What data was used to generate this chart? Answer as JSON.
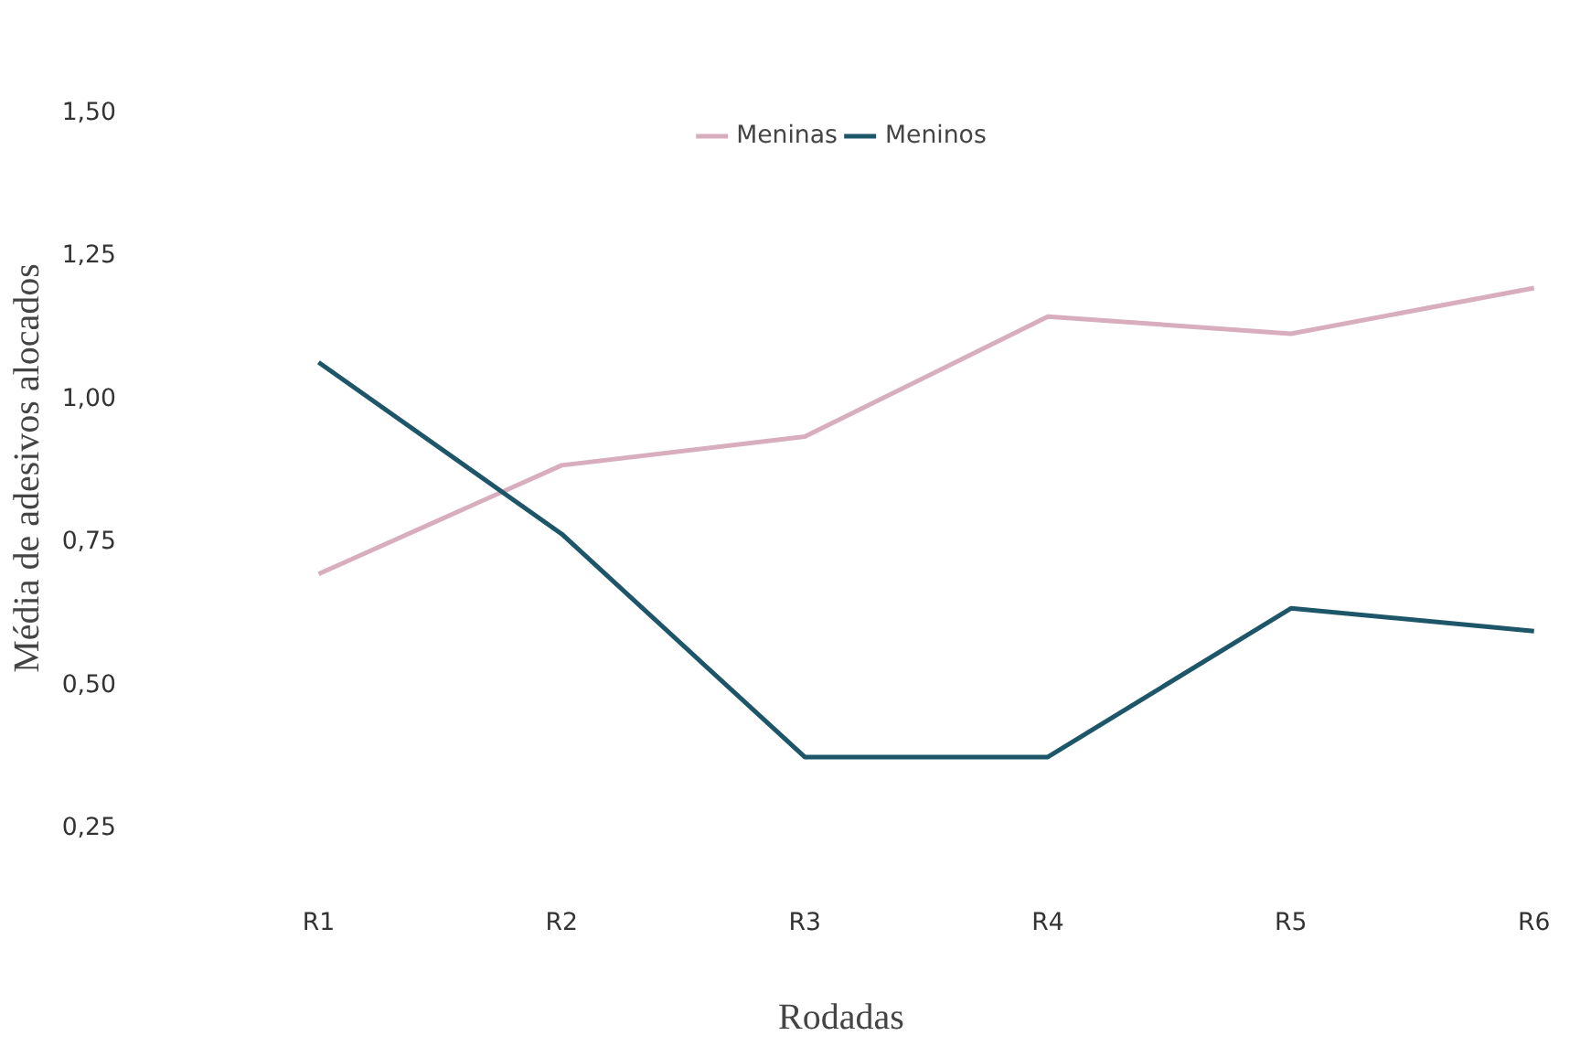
{
  "chart_data": {
    "type": "line",
    "xlabel": "Rodadas",
    "ylabel": "Média de adesivos alocados",
    "categories": [
      "R1",
      "R2",
      "R3",
      "R4",
      "R5",
      "R6"
    ],
    "series": [
      {
        "name": "Meninas",
        "color": "#d8adbd",
        "values": [
          0.69,
          0.88,
          0.93,
          1.14,
          1.11,
          1.19
        ]
      },
      {
        "name": "Meninos",
        "color": "#1d5569",
        "values": [
          1.06,
          0.76,
          0.37,
          0.37,
          0.63,
          0.59
        ]
      }
    ],
    "ylim": [
      0.25,
      1.5
    ],
    "yticks": [
      {
        "value": 0.25,
        "label": "0,25"
      },
      {
        "value": 0.5,
        "label": "0,50"
      },
      {
        "value": 0.75,
        "label": "0,75"
      },
      {
        "value": 1.0,
        "label": "1,00"
      },
      {
        "value": 1.25,
        "label": "1,25"
      },
      {
        "value": 1.5,
        "label": "1,50"
      }
    ],
    "grid": false,
    "legend": "top",
    "marker": "none",
    "line_style": "solid"
  }
}
